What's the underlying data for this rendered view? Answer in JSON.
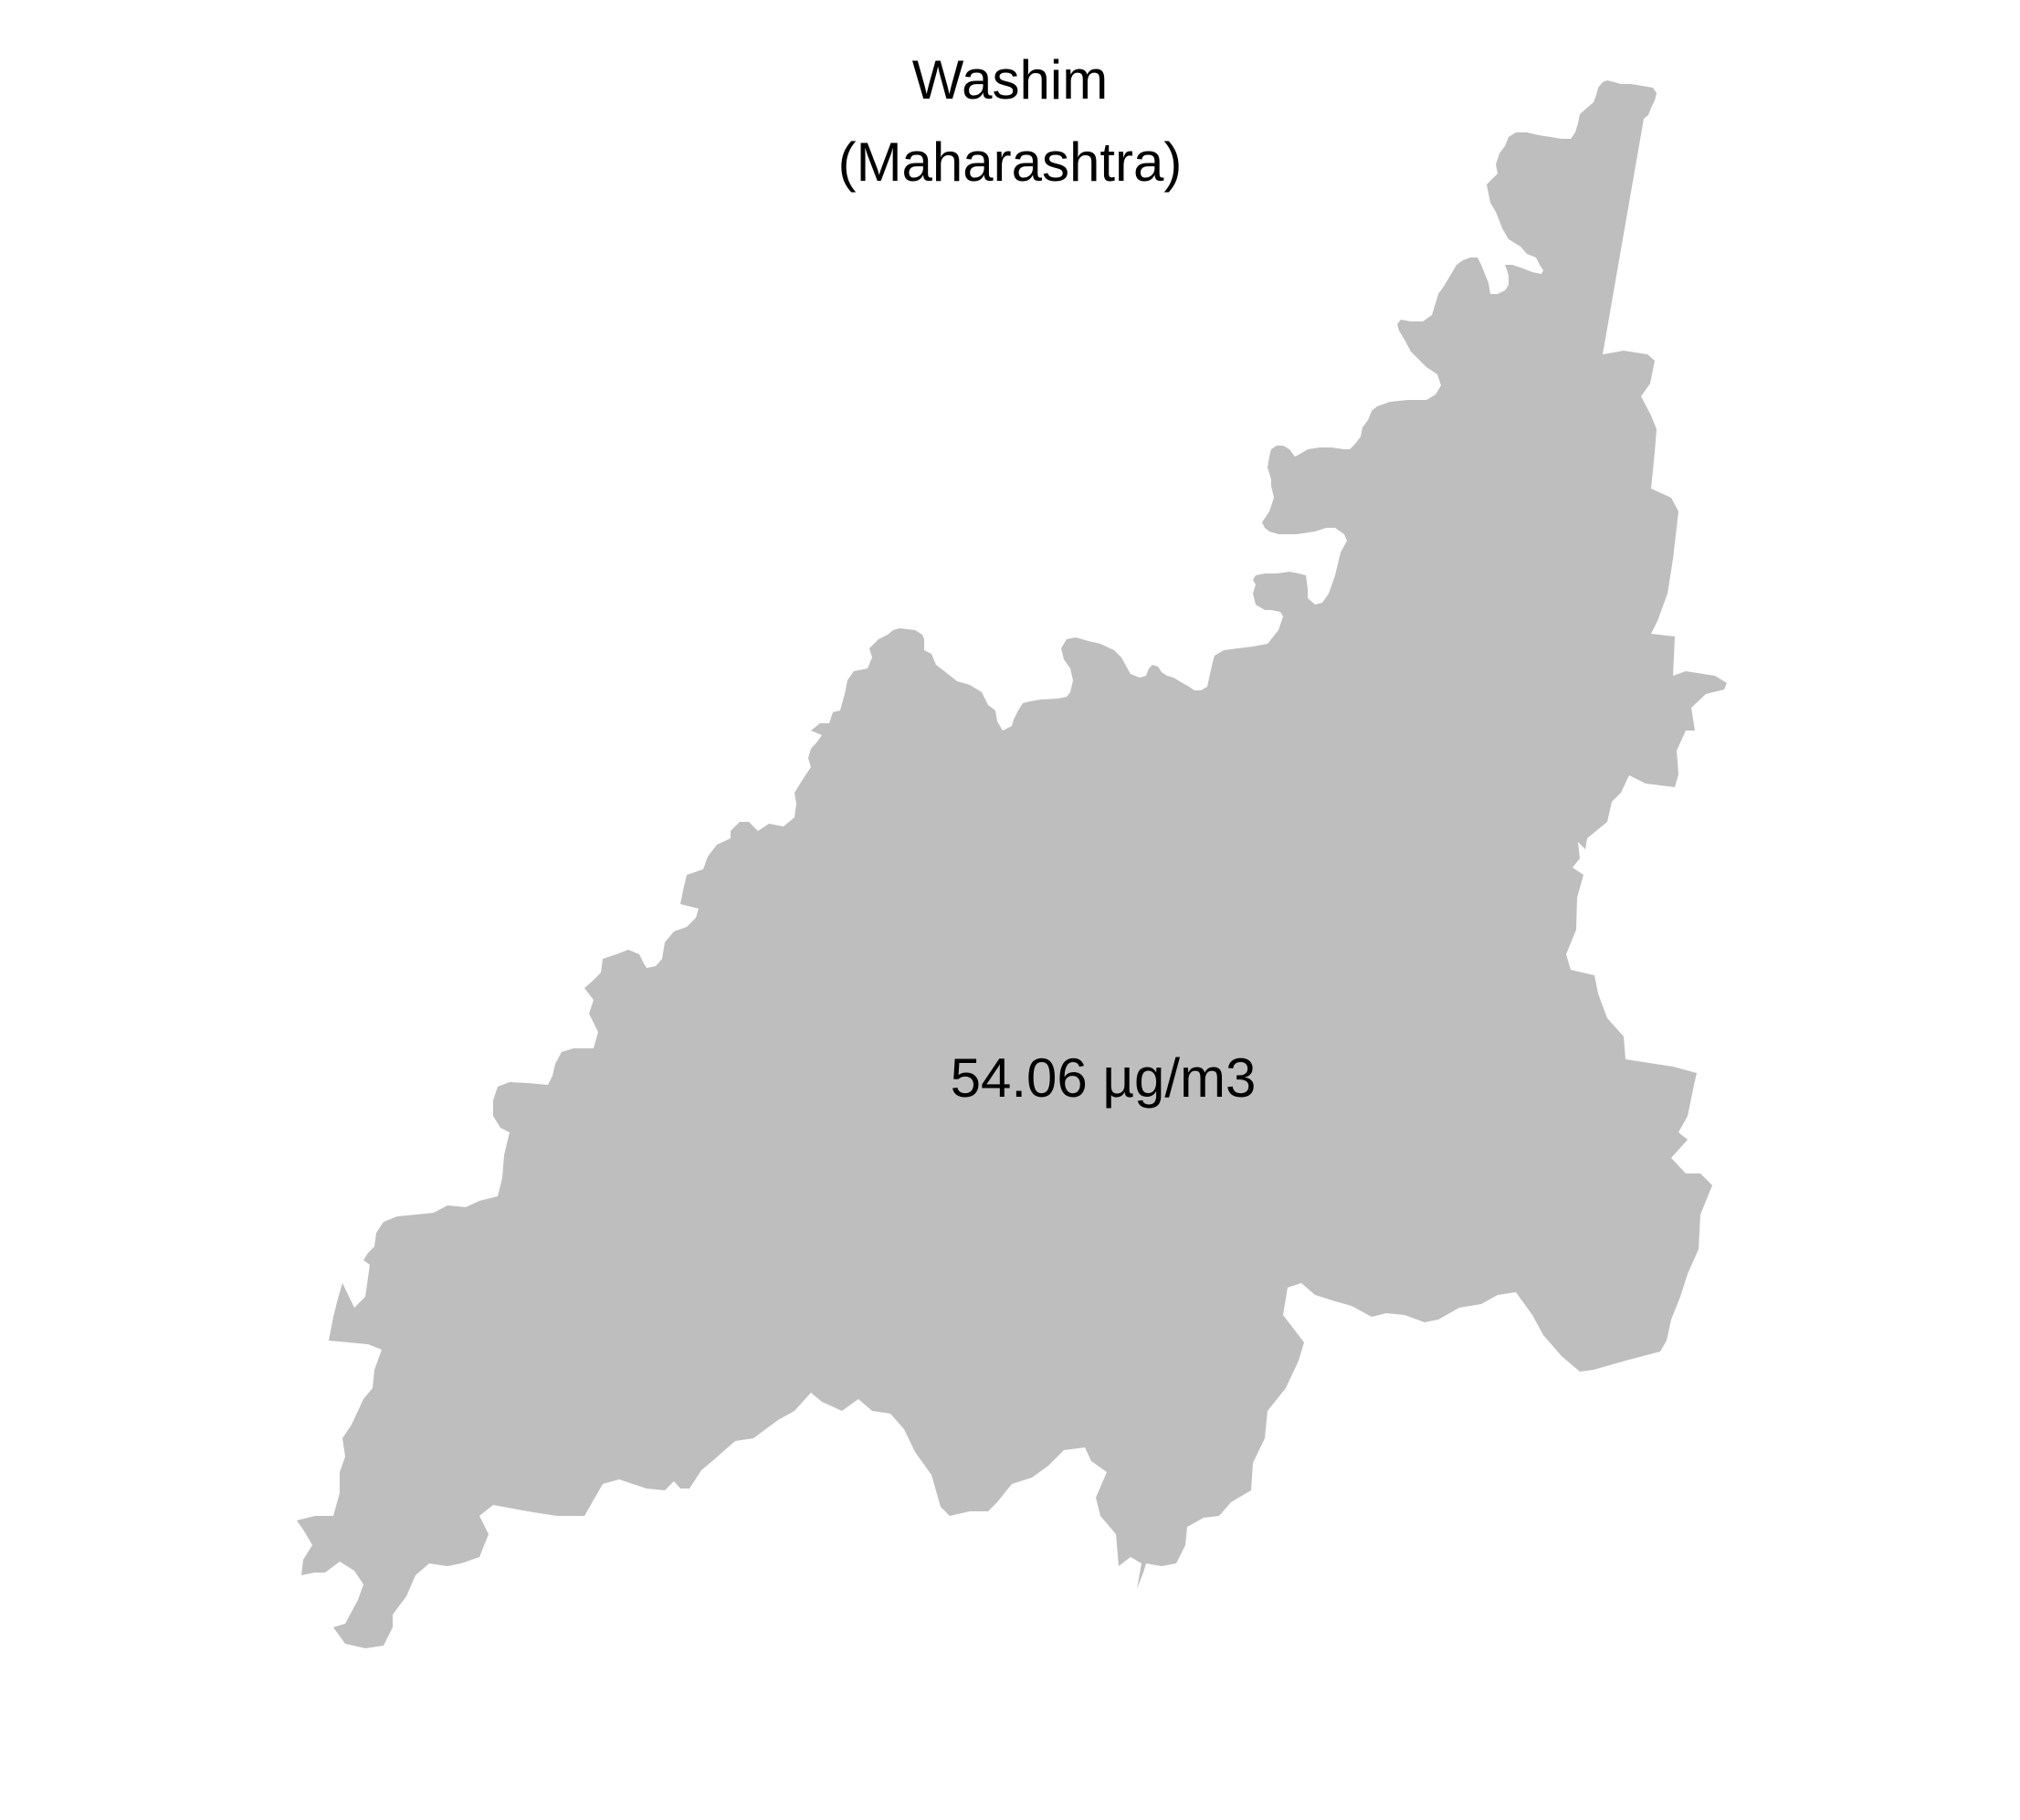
{
  "map": {
    "title_line1": "Washim",
    "title_line2": "(Maharashtra)",
    "region": {
      "name": "Washim",
      "value_label": "54.06 µg/m3",
      "fill_color": "#bebebe"
    },
    "background_color": "#ffffff"
  }
}
